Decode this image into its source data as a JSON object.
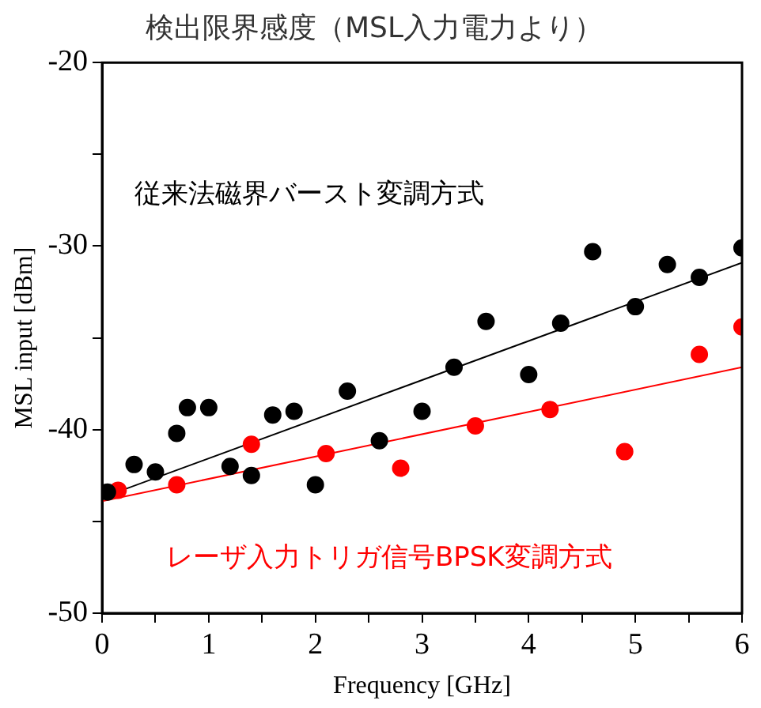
{
  "chart_data": {
    "type": "scatter",
    "title": "検出限界感度（MSL入力電力より）",
    "xlabel": "Frequency [GHz]",
    "ylabel": "MSL input [dBm]",
    "xlim": [
      0,
      6
    ],
    "xticks": [
      0,
      {
        "value": 0.5,
        "label": null
      },
      1,
      {
        "value": 1.5,
        "label": null
      },
      2,
      {
        "value": 2.5,
        "label": null
      },
      3,
      {
        "value": 3.5,
        "label": null
      },
      4,
      {
        "value": 4.5,
        "label": null
      },
      5,
      {
        "value": 5.5,
        "label": null
      },
      6
    ],
    "ylim": [
      -50,
      -20
    ],
    "yticks": [
      -50,
      {
        "value": -45,
        "label": null
      },
      -40,
      {
        "value": -35,
        "label": null
      },
      -30,
      {
        "value": -25,
        "label": null
      },
      -20
    ],
    "grid": false,
    "legend": false,
    "marker": "circle",
    "series": [
      {
        "name": "従来法磁界バースト変調方式",
        "color": "#000000",
        "x": [
          0.05,
          0.3,
          0.5,
          0.7,
          0.8,
          1.0,
          1.2,
          1.4,
          1.6,
          1.8,
          2.0,
          2.3,
          2.6,
          3.0,
          3.3,
          3.6,
          4.0,
          4.3,
          4.6,
          5.0,
          5.3,
          5.6,
          6.0
        ],
        "values": [
          -43.4,
          -41.9,
          -42.3,
          -40.2,
          -38.8,
          -38.8,
          -42,
          -42.5,
          -39.2,
          -39,
          -43,
          -37.9,
          -40.6,
          -39,
          -36.6,
          -34.1,
          -37,
          -34.2,
          -30.3,
          -33.3,
          -31,
          -31.7,
          -30.1
        ]
      },
      {
        "name": "レーザ入力トリガ信号BPSK変調方式",
        "color": "#ff0000",
        "x": [
          0.15,
          0.7,
          1.4,
          2.1,
          2.8,
          3.5,
          4.2,
          4.9,
          5.6,
          6.0
        ],
        "values": [
          -43.3,
          -43,
          -40.8,
          -41.3,
          -42.1,
          -39.8,
          -38.9,
          -41.2,
          -35.9,
          -34.4
        ]
      },
      {
        "type": "line",
        "marker": "none",
        "color": "#000000",
        "x": [
          0,
          6
        ],
        "values": [
          -43.7,
          -30.9
        ]
      },
      {
        "type": "line",
        "marker": "none",
        "color": "#ff0000",
        "x": [
          0,
          6
        ],
        "values": [
          -43.9,
          -36.6
        ]
      }
    ]
  }
}
